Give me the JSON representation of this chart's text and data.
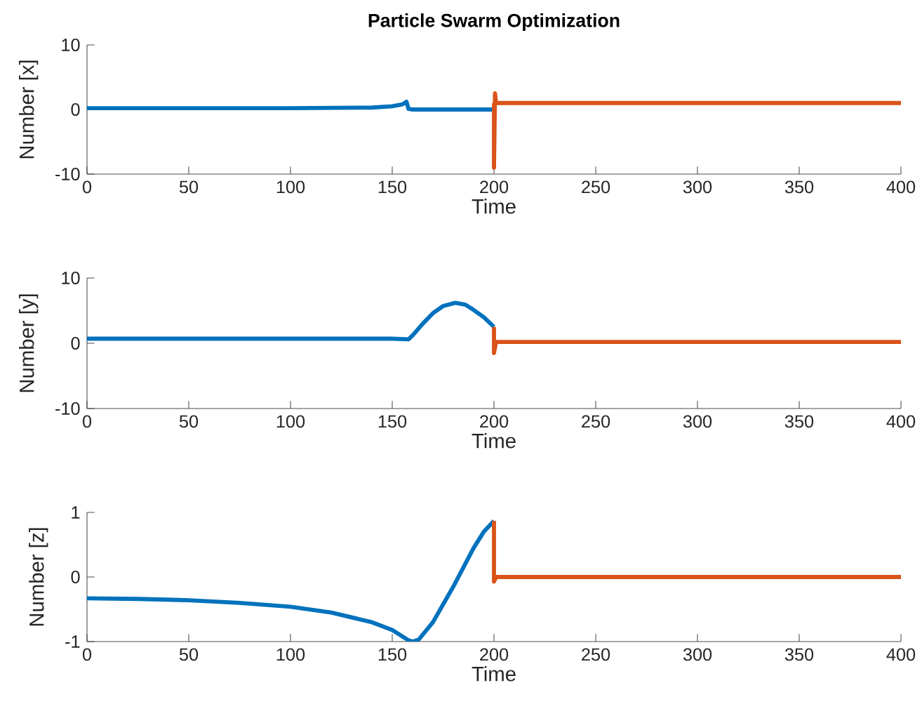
{
  "chart_data": [
    {
      "type": "line",
      "title": "Particle Swarm Optimization",
      "xlabel": "Time",
      "ylabel": "Number  [x]",
      "xlim": [
        0,
        400
      ],
      "xticks": [
        0,
        50,
        100,
        150,
        200,
        250,
        300,
        350,
        400
      ],
      "ylim": [
        -10,
        10
      ],
      "yticks": [
        -10,
        0,
        10
      ],
      "marker": "none",
      "line_style": "solid",
      "series": [
        {
          "color": "#0072bd",
          "x": [
            0,
            100,
            140,
            150,
            155,
            157,
            158,
            160,
            199.5
          ],
          "values": [
            0.2,
            0.2,
            0.3,
            0.5,
            0.8,
            1.2,
            0.1,
            0,
            0
          ]
        },
        {
          "color": "#d95319",
          "x": [
            200,
            200,
            200.5,
            201,
            400
          ],
          "values": [
            1,
            -9,
            2.5,
            1,
            1
          ]
        }
      ]
    },
    {
      "type": "line",
      "xlabel": "Time",
      "ylabel": "Number  [y]",
      "xlim": [
        0,
        400
      ],
      "xticks": [
        0,
        50,
        100,
        150,
        200,
        250,
        300,
        350,
        400
      ],
      "ylim": [
        -10,
        10
      ],
      "yticks": [
        -10,
        0,
        10
      ],
      "marker": "none",
      "line_style": "solid",
      "series": [
        {
          "color": "#0072bd",
          "x": [
            0,
            150,
            158,
            160,
            165,
            170,
            175,
            181,
            186,
            190,
            195,
            200
          ],
          "values": [
            0.7,
            0.7,
            0.6,
            1.2,
            3,
            4.6,
            5.7,
            6.2,
            5.9,
            5.1,
            4,
            2.5
          ]
        },
        {
          "color": "#d95319",
          "x": [
            200,
            200,
            201,
            400
          ],
          "values": [
            2.5,
            -1.5,
            0.2,
            0.2
          ]
        }
      ]
    },
    {
      "type": "line",
      "xlabel": "Time",
      "ylabel": "Number  [z]",
      "xlim": [
        0,
        400
      ],
      "xticks": [
        0,
        50,
        100,
        150,
        200,
        250,
        300,
        350,
        400
      ],
      "ylim": [
        -1,
        1
      ],
      "yticks": [
        -1,
        0,
        1
      ],
      "marker": "none",
      "line_style": "solid",
      "series": [
        {
          "color": "#0072bd",
          "x": [
            0,
            25,
            50,
            75,
            100,
            120,
            140,
            150,
            158,
            160,
            163,
            170,
            180,
            190,
            195,
            200
          ],
          "values": [
            -0.33,
            -0.34,
            -0.36,
            -0.4,
            -0.46,
            -0.55,
            -0.7,
            -0.82,
            -0.98,
            -1,
            -0.97,
            -0.7,
            -0.15,
            0.45,
            0.7,
            0.87
          ]
        },
        {
          "color": "#d95319",
          "x": [
            200,
            200,
            201,
            400
          ],
          "values": [
            0.87,
            -0.07,
            0,
            0
          ]
        }
      ]
    }
  ]
}
